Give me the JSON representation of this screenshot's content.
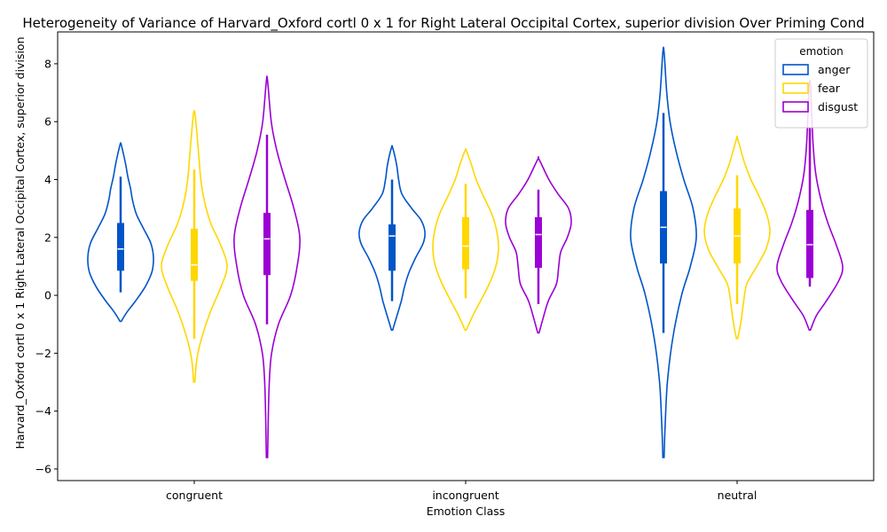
{
  "chart_data": {
    "type": "violin",
    "title": "Heterogeneity of Variance of Harvard_Oxford cortl 0 x 1 for Right Lateral Occipital Cortex, superior division Over Priming Cond",
    "xlabel": "Emotion Class",
    "ylabel": "Harvard_Oxford cortl 0 x 1 Right Lateral Occipital Cortex, superior division",
    "categories": [
      "congruent",
      "incongruent",
      "neutral"
    ],
    "ylim": [
      -6.4,
      9.1
    ],
    "yticks": [
      -6,
      -4,
      -2,
      0,
      2,
      4,
      6,
      8
    ],
    "ytick_labels": [
      "−6",
      "−4",
      "−2",
      "0",
      "2",
      "4",
      "6",
      "8"
    ],
    "legend": {
      "title": "emotion",
      "position": "top-right"
    },
    "series": [
      {
        "name": "anger",
        "color": "#0055c8",
        "groups": [
          {
            "min": -0.9,
            "max": 5.2,
            "q1": 0.85,
            "median": 1.6,
            "q3": 2.5,
            "whisker_low": 0.1,
            "whisker_high": 4.1,
            "profile": [
              [
                -0.9,
                0.02
              ],
              [
                -0.6,
                0.18
              ],
              [
                -0.2,
                0.45
              ],
              [
                0.3,
                0.75
              ],
              [
                0.8,
                0.95
              ],
              [
                1.3,
                1.0
              ],
              [
                1.8,
                0.92
              ],
              [
                2.3,
                0.7
              ],
              [
                2.8,
                0.48
              ],
              [
                3.3,
                0.36
              ],
              [
                3.7,
                0.3
              ],
              [
                4.1,
                0.22
              ],
              [
                4.6,
                0.14
              ],
              [
                5.2,
                0.02
              ]
            ]
          },
          {
            "min": -1.2,
            "max": 5.1,
            "q1": 0.85,
            "median": 2.05,
            "q3": 2.45,
            "whisker_low": -0.2,
            "whisker_high": 4.0,
            "profile": [
              [
                -1.2,
                0.02
              ],
              [
                -0.7,
                0.15
              ],
              [
                -0.2,
                0.28
              ],
              [
                0.3,
                0.38
              ],
              [
                0.8,
                0.52
              ],
              [
                1.3,
                0.72
              ],
              [
                1.8,
                0.95
              ],
              [
                2.2,
                1.0
              ],
              [
                2.6,
                0.88
              ],
              [
                3.0,
                0.6
              ],
              [
                3.5,
                0.3
              ],
              [
                4.0,
                0.2
              ],
              [
                4.5,
                0.14
              ],
              [
                5.1,
                0.02
              ]
            ]
          },
          {
            "min": -5.6,
            "max": 8.4,
            "q1": 1.1,
            "median": 2.35,
            "q3": 3.6,
            "whisker_low": -1.3,
            "whisker_high": 6.3,
            "profile": [
              [
                -5.6,
                0.02
              ],
              [
                -4.5,
                0.05
              ],
              [
                -3.0,
                0.12
              ],
              [
                -1.5,
                0.28
              ],
              [
                0.0,
                0.55
              ],
              [
                1.0,
                0.82
              ],
              [
                2.0,
                1.0
              ],
              [
                3.0,
                0.9
              ],
              [
                4.0,
                0.62
              ],
              [
                5.0,
                0.38
              ],
              [
                6.0,
                0.2
              ],
              [
                7.0,
                0.1
              ],
              [
                8.4,
                0.02
              ]
            ]
          }
        ]
      },
      {
        "name": "fear",
        "color": "#ffd700",
        "groups": [
          {
            "min": -3.0,
            "max": 6.3,
            "q1": 0.5,
            "median": 1.05,
            "q3": 2.3,
            "whisker_low": -1.5,
            "whisker_high": 4.35,
            "profile": [
              [
                -3.0,
                0.02
              ],
              [
                -2.2,
                0.08
              ],
              [
                -1.5,
                0.22
              ],
              [
                -0.6,
                0.48
              ],
              [
                0.3,
                0.82
              ],
              [
                1.0,
                1.0
              ],
              [
                1.7,
                0.82
              ],
              [
                2.5,
                0.5
              ],
              [
                3.3,
                0.3
              ],
              [
                4.0,
                0.2
              ],
              [
                4.8,
                0.14
              ],
              [
                5.6,
                0.08
              ],
              [
                6.3,
                0.02
              ]
            ]
          },
          {
            "min": -1.2,
            "max": 5.0,
            "q1": 0.9,
            "median": 1.7,
            "q3": 2.7,
            "whisker_low": -0.1,
            "whisker_high": 3.85,
            "profile": [
              [
                -1.2,
                0.02
              ],
              [
                -0.7,
                0.22
              ],
              [
                -0.2,
                0.45
              ],
              [
                0.4,
                0.72
              ],
              [
                1.0,
                0.92
              ],
              [
                1.6,
                1.0
              ],
              [
                2.2,
                0.95
              ],
              [
                2.8,
                0.8
              ],
              [
                3.4,
                0.55
              ],
              [
                4.0,
                0.32
              ],
              [
                4.5,
                0.18
              ],
              [
                5.0,
                0.02
              ]
            ]
          },
          {
            "min": -1.5,
            "max": 5.4,
            "q1": 1.1,
            "median": 2.05,
            "q3": 3.0,
            "whisker_low": -0.3,
            "whisker_high": 4.15,
            "profile": [
              [
                -1.5,
                0.02
              ],
              [
                -0.9,
                0.12
              ],
              [
                -0.2,
                0.2
              ],
              [
                0.4,
                0.3
              ],
              [
                1.0,
                0.6
              ],
              [
                1.6,
                0.88
              ],
              [
                2.2,
                1.0
              ],
              [
                2.8,
                0.9
              ],
              [
                3.4,
                0.68
              ],
              [
                4.0,
                0.42
              ],
              [
                4.6,
                0.22
              ],
              [
                5.4,
                0.02
              ]
            ]
          }
        ]
      },
      {
        "name": "disgust",
        "color": "#9b00d4",
        "groups": [
          {
            "min": -5.6,
            "max": 7.4,
            "q1": 0.7,
            "median": 1.95,
            "q3": 2.85,
            "whisker_low": -1.0,
            "whisker_high": 5.55,
            "profile": [
              [
                -5.6,
                0.02
              ],
              [
                -4.2,
                0.04
              ],
              [
                -3.0,
                0.07
              ],
              [
                -2.0,
                0.14
              ],
              [
                -1.0,
                0.35
              ],
              [
                0.0,
                0.72
              ],
              [
                1.0,
                0.92
              ],
              [
                2.0,
                1.0
              ],
              [
                3.0,
                0.82
              ],
              [
                4.0,
                0.55
              ],
              [
                5.0,
                0.3
              ],
              [
                6.0,
                0.13
              ],
              [
                7.4,
                0.02
              ]
            ]
          },
          {
            "min": -1.3,
            "max": 4.7,
            "q1": 0.95,
            "median": 2.1,
            "q3": 2.7,
            "whisker_low": -0.3,
            "whisker_high": 3.65,
            "profile": [
              [
                -1.3,
                0.02
              ],
              [
                -0.8,
                0.14
              ],
              [
                -0.2,
                0.3
              ],
              [
                0.4,
                0.55
              ],
              [
                1.0,
                0.62
              ],
              [
                1.5,
                0.68
              ],
              [
                2.0,
                0.88
              ],
              [
                2.5,
                1.0
              ],
              [
                3.0,
                0.92
              ],
              [
                3.5,
                0.6
              ],
              [
                4.0,
                0.32
              ],
              [
                4.7,
                0.02
              ]
            ]
          },
          {
            "min": -1.2,
            "max": 7.3,
            "q1": 0.6,
            "median": 1.75,
            "q3": 2.95,
            "whisker_low": 0.3,
            "whisker_high": 5.8,
            "profile": [
              [
                -1.2,
                0.02
              ],
              [
                -0.7,
                0.2
              ],
              [
                -0.2,
                0.5
              ],
              [
                0.5,
                0.88
              ],
              [
                1.0,
                1.0
              ],
              [
                1.7,
                0.82
              ],
              [
                2.5,
                0.55
              ],
              [
                3.3,
                0.34
              ],
              [
                4.2,
                0.18
              ],
              [
                5.2,
                0.1
              ],
              [
                6.2,
                0.06
              ],
              [
                7.3,
                0.02
              ]
            ]
          }
        ]
      }
    ]
  }
}
